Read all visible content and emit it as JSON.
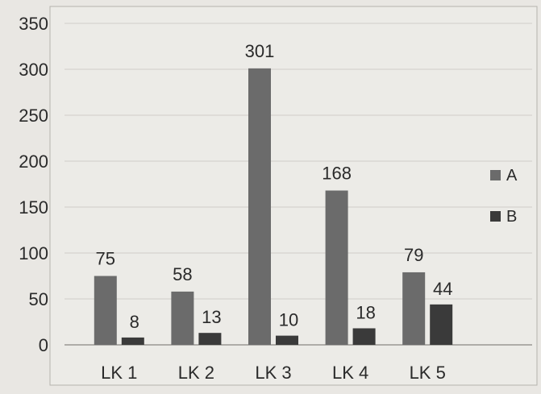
{
  "chart_data": {
    "type": "bar",
    "categories": [
      "LK 1",
      "LK 2",
      "LK 3",
      "LK 4",
      "LK 5"
    ],
    "series": [
      {
        "name": "A",
        "values": [
          75,
          58,
          301,
          168,
          79
        ],
        "color": "#6b6b6b"
      },
      {
        "name": "B",
        "values": [
          8,
          13,
          10,
          18,
          44
        ],
        "color": "#3a3a3a"
      }
    ],
    "ylim": [
      0,
      350
    ],
    "yticks": [
      0,
      50,
      100,
      150,
      200,
      250,
      300,
      350
    ],
    "grid": true,
    "legend": "right",
    "data_labels": true
  }
}
